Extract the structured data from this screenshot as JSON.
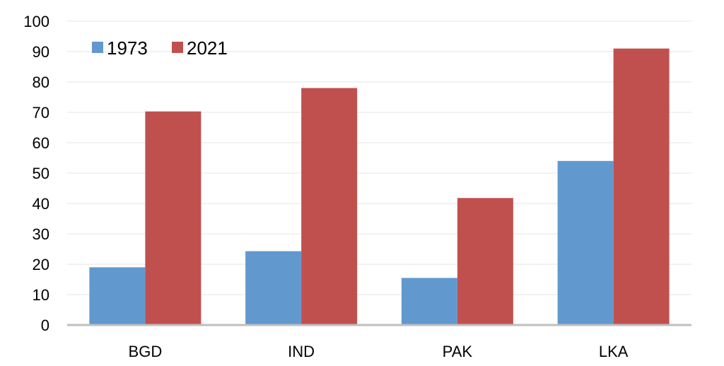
{
  "chart_data": {
    "type": "bar",
    "title": "",
    "xlabel": "",
    "ylabel": "",
    "categories": [
      "BGD",
      "IND",
      "PAK",
      "LKA"
    ],
    "series": [
      {
        "name": "1973",
        "color": "#6199cf",
        "values": [
          19,
          24.3,
          15.5,
          54
        ]
      },
      {
        "name": "2021",
        "color": "#c0504d",
        "values": [
          70.3,
          78,
          41.8,
          91
        ]
      }
    ],
    "ylim": [
      0,
      100
    ],
    "yticks": [
      0,
      10,
      20,
      30,
      40,
      50,
      60,
      70,
      80,
      90,
      100
    ],
    "grid": true,
    "legend_position": "top-left"
  }
}
